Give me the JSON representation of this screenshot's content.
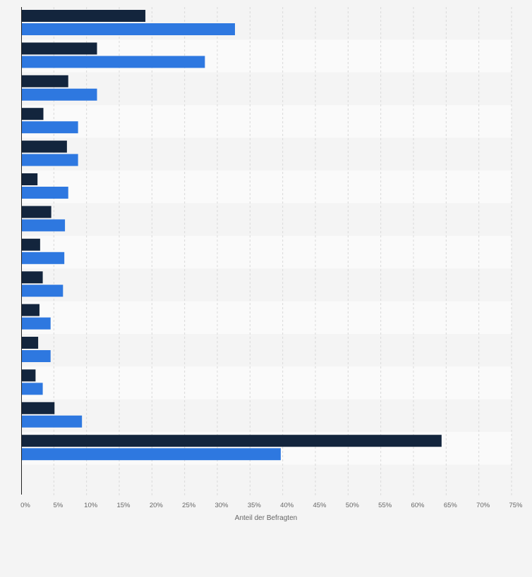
{
  "chart_data": {
    "type": "bar",
    "orientation": "horizontal",
    "xlabel": "Anteil der Befragten",
    "ylabel": "",
    "xlim": [
      0,
      75
    ],
    "x_ticks": [
      "0%",
      "5%",
      "10%",
      "15%",
      "20%",
      "25%",
      "30%",
      "35%",
      "40%",
      "45%",
      "50%",
      "55%",
      "60%",
      "65%",
      "70%",
      "75%"
    ],
    "categories": [
      "",
      "",
      "",
      "",
      "",
      "",
      "",
      "",
      "",
      "",
      "",
      "",
      "",
      "",
      ""
    ],
    "series": [
      {
        "color": "#13253d",
        "values": [
          19,
          11.6,
          7.2,
          3.4,
          7.0,
          2.5,
          4.6,
          2.9,
          3.3,
          2.8,
          2.6,
          2.2,
          5.1,
          64.3,
          0.1
        ]
      },
      {
        "color": "#2e78e0",
        "values": [
          32.7,
          28.1,
          11.6,
          8.7,
          8.7,
          7.2,
          6.7,
          6.6,
          6.4,
          4.5,
          4.5,
          3.3,
          9.3,
          39.7,
          0
        ]
      }
    ],
    "grid": true,
    "legend": "none"
  }
}
